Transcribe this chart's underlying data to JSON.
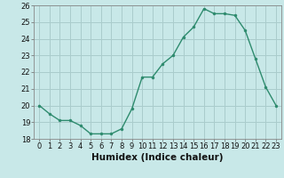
{
  "title": "",
  "xlabel": "Humidex (Indice chaleur)",
  "ylabel": "",
  "x": [
    0,
    1,
    2,
    3,
    4,
    5,
    6,
    7,
    8,
    9,
    10,
    11,
    12,
    13,
    14,
    15,
    16,
    17,
    18,
    19,
    20,
    21,
    22,
    23
  ],
  "y": [
    20.0,
    19.5,
    19.1,
    19.1,
    18.8,
    18.3,
    18.3,
    18.3,
    18.6,
    19.8,
    21.7,
    21.7,
    22.5,
    23.0,
    24.1,
    24.7,
    25.8,
    25.5,
    25.5,
    25.4,
    24.5,
    22.8,
    21.1,
    20.0
  ],
  "line_color": "#2e8b6e",
  "marker_color": "#2e8b6e",
  "bg_color": "#c8e8e8",
  "grid_color": "#aacccc",
  "ylim": [
    18,
    26
  ],
  "xlim": [
    -0.5,
    23.5
  ],
  "yticks": [
    18,
    19,
    20,
    21,
    22,
    23,
    24,
    25,
    26
  ],
  "xticks": [
    0,
    1,
    2,
    3,
    4,
    5,
    6,
    7,
    8,
    9,
    10,
    11,
    12,
    13,
    14,
    15,
    16,
    17,
    18,
    19,
    20,
    21,
    22,
    23
  ],
  "tick_fontsize": 6,
  "label_fontsize": 7.5,
  "linewidth": 1.0,
  "markersize": 2.2
}
